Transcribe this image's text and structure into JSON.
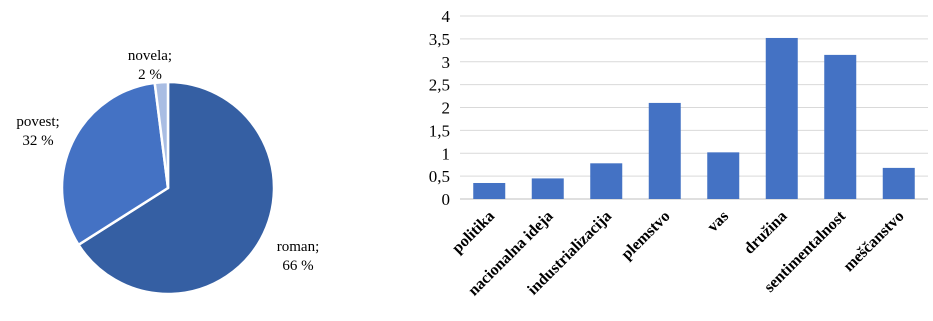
{
  "chart_data": [
    {
      "type": "pie",
      "slices": [
        {
          "name": "roman",
          "value": 66,
          "label": "roman;",
          "pct": "66 %",
          "color": "#355fa3"
        },
        {
          "name": "povest",
          "value": 32,
          "label": "povest;",
          "pct": "32 %",
          "color": "#4472c4"
        },
        {
          "name": "novela",
          "value": 2,
          "label": "novela;",
          "pct": "2 %",
          "color": "#a9bde3"
        }
      ]
    },
    {
      "type": "bar",
      "categories": [
        "politika",
        "nacionalna ideja",
        "industrializacija",
        "plemstvo",
        "vas",
        "družina",
        "sentimentalnost",
        "meščanstvo"
      ],
      "values": [
        0.35,
        0.45,
        0.78,
        2.1,
        1.02,
        3.52,
        3.15,
        0.68
      ],
      "ylim": [
        0,
        4
      ],
      "yticks": [
        "0",
        "0,5",
        "1",
        "1,5",
        "2",
        "2,5",
        "3",
        "3,5",
        "4"
      ],
      "grid": true,
      "bar_color": "#4472c4",
      "grid_color": "#d9d9d9"
    }
  ]
}
